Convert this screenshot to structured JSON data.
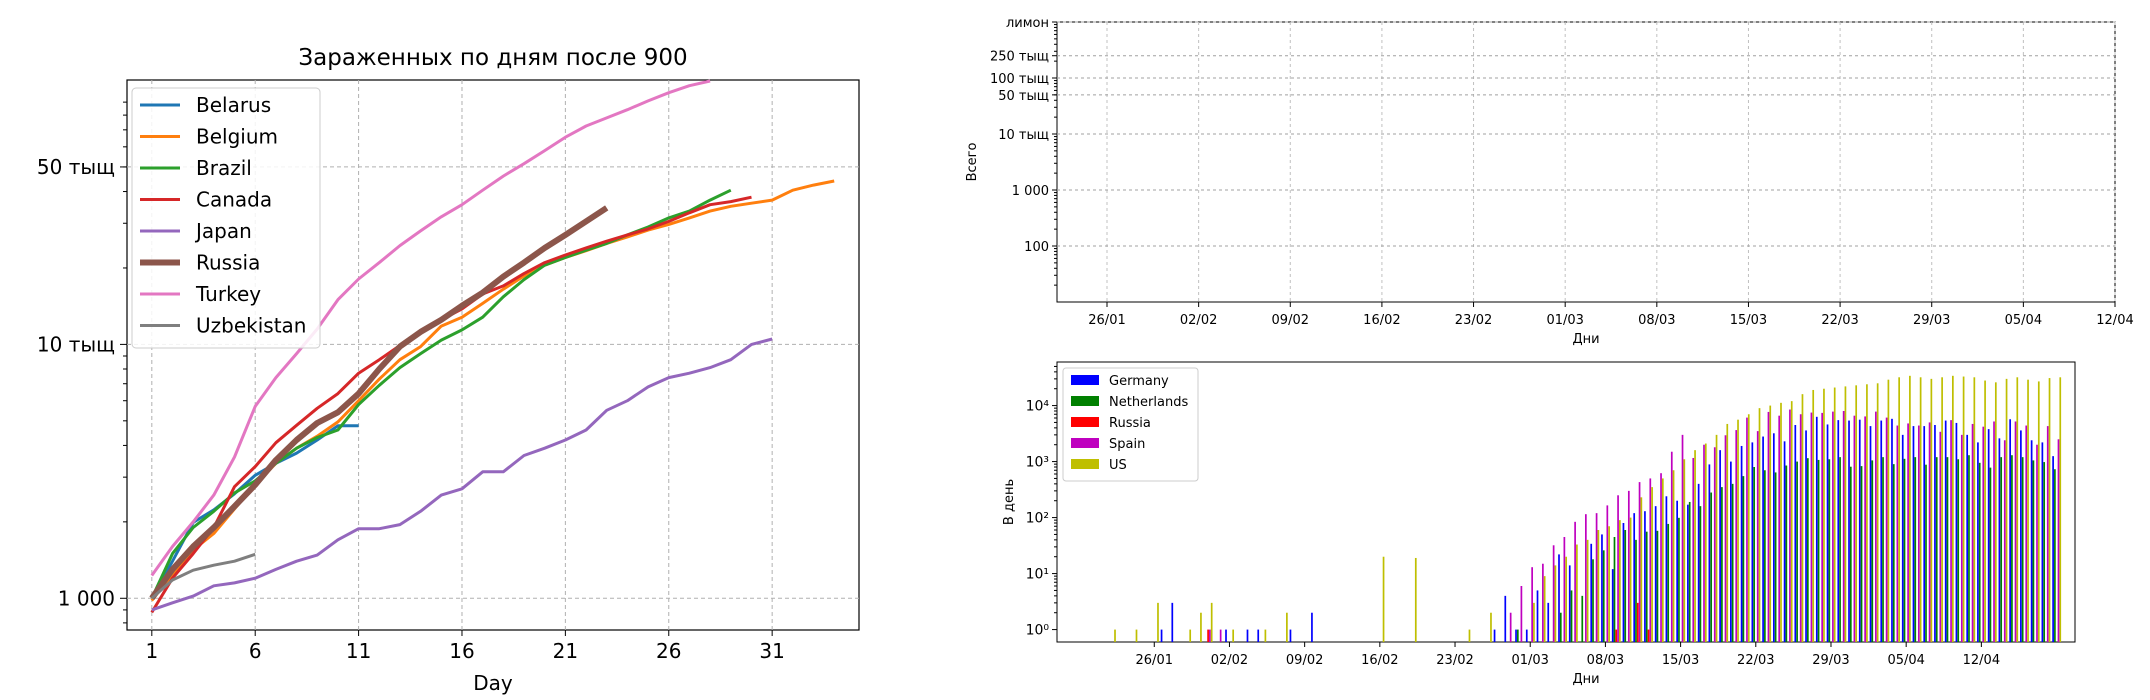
{
  "chart_data": [
    {
      "type": "line",
      "title": "Зараженных по дням после 900",
      "xlabel": "Day",
      "ylabel": "",
      "yscale": "log",
      "xlim": [
        -0.2,
        35.2
      ],
      "ylim": [
        750,
        110000
      ],
      "xticks": [
        1,
        6,
        11,
        16,
        21,
        26,
        31
      ],
      "xtick_labels": [
        "1",
        "6",
        "11",
        "16",
        "21",
        "26",
        "31"
      ],
      "yticks": [
        1000,
        10000,
        50000
      ],
      "ytick_labels": [
        "1 000",
        "10 тыщ",
        "50 тыщ"
      ],
      "grid": true,
      "legend": "upper-left",
      "series": [
        {
          "name": "Belarus",
          "color": "#1f77b4",
          "width": 2.5,
          "x": [
            1,
            2,
            3,
            4,
            5,
            6,
            7,
            8,
            9,
            10,
            11
          ],
          "y": [
            1000,
            1400,
            1990,
            2230,
            2580,
            3050,
            3400,
            3730,
            4200,
            4780,
            4780
          ]
        },
        {
          "name": "Belgium",
          "color": "#ff7f0e",
          "width": 2.5,
          "x": [
            1,
            2,
            3,
            4,
            5,
            6,
            7,
            8,
            9,
            10,
            11,
            12,
            13,
            14,
            15,
            16,
            17,
            18,
            19,
            20,
            21,
            22,
            23,
            24,
            25,
            26,
            27,
            28,
            29,
            30,
            31,
            32,
            33,
            34
          ],
          "y": [
            980,
            1240,
            1550,
            1800,
            2250,
            2800,
            3400,
            3900,
            4350,
            4950,
            6000,
            7300,
            8700,
            9800,
            11800,
            12800,
            14500,
            16500,
            18600,
            20500,
            22000,
            23400,
            25000,
            26500,
            28200,
            29700,
            31500,
            33500,
            35000,
            36000,
            37000,
            40500,
            42400,
            44000
          ]
        },
        {
          "name": "Brazil",
          "color": "#2ca02c",
          "width": 2.5,
          "x": [
            1,
            2,
            3,
            4,
            5,
            6,
            7,
            8,
            9,
            10,
            11,
            12,
            13,
            14,
            15,
            16,
            17,
            18,
            19,
            20,
            21,
            22,
            23,
            24,
            25,
            26,
            27,
            28,
            29
          ],
          "y": [
            1000,
            1500,
            1900,
            2200,
            2600,
            2900,
            3400,
            3900,
            4300,
            4600,
            5800,
            6900,
            8100,
            9200,
            10400,
            11400,
            12800,
            15400,
            18000,
            20500,
            22000,
            23500,
            25000,
            27000,
            29000,
            31500,
            33500,
            37000,
            40500
          ]
        },
        {
          "name": "Canada",
          "color": "#d62728",
          "width": 2.5,
          "x": [
            1,
            2,
            3,
            4,
            5,
            6,
            7,
            8,
            9,
            10,
            11,
            12,
            13,
            14,
            15,
            16,
            17,
            18,
            19,
            20,
            21,
            22,
            23,
            24,
            25,
            26,
            27,
            28,
            29,
            30
          ],
          "y": [
            880,
            1200,
            1500,
            1900,
            2750,
            3300,
            4100,
            4800,
            5600,
            6400,
            7700,
            8700,
            9900,
            11200,
            12500,
            13800,
            15800,
            17000,
            19000,
            21000,
            22500,
            24000,
            25500,
            27000,
            28500,
            30500,
            33000,
            35500,
            36500,
            38000
          ]
        },
        {
          "name": "Japan",
          "color": "#9467bd",
          "width": 2.5,
          "x": [
            1,
            2,
            3,
            4,
            5,
            6,
            7,
            8,
            9,
            10,
            11,
            12,
            13,
            14,
            15,
            16,
            17,
            18,
            19,
            20,
            21,
            22,
            23,
            24,
            25,
            26,
            27,
            28,
            29,
            30,
            31
          ],
          "y": [
            900,
            960,
            1020,
            1120,
            1150,
            1200,
            1300,
            1400,
            1480,
            1700,
            1880,
            1880,
            1950,
            2200,
            2550,
            2700,
            3150,
            3150,
            3650,
            3900,
            4200,
            4600,
            5500,
            6000,
            6800,
            7400,
            7700,
            8100,
            8700,
            10000,
            10500
          ]
        },
        {
          "name": "Russia",
          "color": "#8c564b",
          "width": 5,
          "x": [
            1,
            2,
            3,
            4,
            5,
            6,
            7,
            8,
            9,
            10,
            11,
            12,
            13,
            14,
            15,
            16,
            17,
            18,
            19,
            20,
            21,
            22,
            23
          ],
          "y": [
            1000,
            1300,
            1600,
            1900,
            2300,
            2800,
            3500,
            4200,
            4900,
            5400,
            6400,
            8000,
            9800,
            11200,
            12500,
            14200,
            16000,
            18500,
            21000,
            24000,
            27000,
            30500,
            34500
          ]
        },
        {
          "name": "Turkey",
          "color": "#e377c2",
          "width": 2.5,
          "x": [
            1,
            2,
            3,
            4,
            5,
            6,
            7,
            8,
            9,
            10,
            11,
            12,
            13,
            14,
            15,
            16,
            17,
            18,
            19,
            20,
            21,
            22,
            23,
            24,
            25,
            26,
            27,
            28
          ],
          "y": [
            1230,
            1600,
            2000,
            2550,
            3600,
            5700,
            7400,
            9200,
            11500,
            15000,
            18100,
            21000,
            24500,
            28000,
            31800,
            35500,
            40500,
            46000,
            51500,
            58000,
            65500,
            72500,
            78000,
            84000,
            91000,
            98000,
            104500,
            109000
          ]
        },
        {
          "name": "Uzbekistan",
          "color": "#7f7f7f",
          "width": 2.5,
          "x": [
            1,
            2,
            3,
            4,
            5,
            6
          ],
          "y": [
            1000,
            1180,
            1290,
            1350,
            1400,
            1490
          ]
        }
      ]
    },
    {
      "type": "line",
      "title": "",
      "xlabel": "Дни",
      "ylabel": "Всего",
      "yscale": "log",
      "ylim": [
        10,
        1000000
      ],
      "yticks": [
        100,
        1000,
        10000,
        50000,
        100000,
        250000,
        1000000
      ],
      "ytick_labels": [
        "100",
        "1 000",
        "10 тыщ",
        "50 тыщ",
        "100 тыщ",
        "250 тыщ",
        "лимон"
      ],
      "xtick_labels": [
        "26/01",
        "02/02",
        "09/02",
        "16/02",
        "23/02",
        "01/03",
        "08/03",
        "15/03",
        "22/03",
        "29/03",
        "05/04",
        "12/04"
      ],
      "grid": true,
      "series": []
    },
    {
      "type": "bar",
      "title": "",
      "xlabel": "Дни",
      "ylabel": "В день",
      "yscale": "log",
      "ylim": [
        0.6,
        60000
      ],
      "yticks": [
        1,
        10,
        100,
        1000,
        10000
      ],
      "ytick_labels": [
        "10⁰",
        "10¹",
        "10²",
        "10³",
        "10⁴"
      ],
      "x_start": "22/01",
      "xtick_labels": [
        "26/01",
        "02/02",
        "09/02",
        "16/02",
        "23/02",
        "01/03",
        "08/03",
        "15/03",
        "22/03",
        "29/03",
        "05/04",
        "12/04"
      ],
      "legend": "upper-left",
      "series": [
        {
          "name": "Germany",
          "color": "#0000ff",
          "values": [
            0,
            0,
            0,
            0,
            0,
            1,
            3,
            0,
            0,
            0,
            0,
            1,
            0,
            1,
            1,
            0,
            0,
            1,
            0,
            2,
            0,
            0,
            0,
            0,
            0,
            0,
            0,
            0,
            0,
            0,
            0,
            0,
            0,
            0,
            0,
            0,
            1,
            4,
            1,
            1,
            5,
            3,
            22,
            14,
            0,
            34,
            50,
            12,
            80,
            120,
            130,
            160,
            240,
            200,
            170,
            400,
            890,
            1600,
            1000,
            1900,
            2200,
            2800,
            3200,
            2300,
            4500,
            3600,
            6300,
            4600,
            5500,
            5400,
            5600,
            4300,
            5400,
            5800,
            3000,
            4300,
            4300,
            4500,
            5400,
            4900,
            3000,
            2200,
            3800,
            2600,
            5700,
            3600,
            2400,
            2200,
            1250
          ]
        },
        {
          "name": "Netherlands",
          "color": "#008000",
          "values": [
            0,
            0,
            0,
            0,
            0,
            0,
            0,
            0,
            0,
            0,
            0,
            0,
            0,
            0,
            0,
            0,
            0,
            0,
            0,
            0,
            0,
            0,
            0,
            0,
            0,
            0,
            0,
            0,
            0,
            0,
            0,
            0,
            0,
            0,
            0,
            0,
            0,
            0,
            1,
            0,
            0,
            0,
            2,
            5,
            4,
            18,
            26,
            45,
            60,
            40,
            56,
            58,
            77,
            99,
            190,
            160,
            280,
            350,
            400,
            550,
            800,
            700,
            640,
            850,
            1000,
            1150,
            1070,
            1100,
            1200,
            810,
            830,
            1050,
            1200,
            900,
            1120,
            1200,
            880,
            1200,
            1200,
            1100,
            1300,
            950,
            780,
            1200,
            1300,
            1200,
            1050,
            980,
            730
          ]
        },
        {
          "name": "Russia",
          "color": "#ff0000",
          "values": [
            0,
            0,
            0,
            0,
            0,
            0,
            0,
            0,
            0,
            1,
            0,
            0,
            0,
            0,
            0,
            0,
            0,
            0,
            0,
            0,
            0,
            0,
            0,
            0,
            0,
            0,
            0,
            0,
            0,
            0,
            0,
            0,
            0,
            0,
            0,
            0,
            0,
            0,
            0,
            0,
            0,
            0,
            0,
            0,
            0,
            0,
            0,
            1,
            0,
            3,
            1,
            0,
            0,
            0,
            0,
            0,
            0,
            0,
            0,
            0,
            0,
            0,
            0,
            0,
            0,
            0,
            0,
            0,
            0,
            0,
            0,
            0,
            0,
            0,
            0,
            0,
            0,
            0,
            0,
            0,
            0,
            0,
            0,
            0,
            0,
            0,
            0,
            0,
            0
          ]
        },
        {
          "name": "Spain",
          "color": "#bf00bf",
          "values": [
            0,
            0,
            0,
            0,
            0,
            0,
            0,
            0,
            0,
            1,
            1,
            0,
            0,
            0,
            0,
            0,
            0,
            0,
            0,
            0,
            0,
            0,
            0,
            0,
            0,
            0,
            0,
            0,
            0,
            0,
            0,
            0,
            0,
            0,
            0,
            0,
            0,
            2,
            6,
            13,
            15,
            32,
            45,
            84,
            115,
            120,
            165,
            250,
            300,
            430,
            500,
            620,
            1500,
            3000,
            1160,
            2000,
            1800,
            2950,
            3650,
            6100,
            3500,
            7700,
            6600,
            8500,
            7000,
            7500,
            7400,
            7800,
            8000,
            6600,
            6400,
            7800,
            6100,
            4400,
            4800,
            4400,
            5000,
            3400,
            5500,
            3000,
            4700,
            4200,
            5200,
            2400,
            5200,
            4400,
            2000,
            4300,
            2500
          ]
        },
        {
          "name": "US",
          "color": "#bfbf00",
          "values": [
            1,
            0,
            1,
            0,
            3,
            0,
            0,
            1,
            2,
            3,
            0,
            1,
            0,
            0,
            1,
            0,
            2,
            0,
            0,
            0,
            0,
            0,
            0,
            0,
            0,
            20,
            0,
            0,
            19,
            0,
            0,
            0,
            0,
            1,
            0,
            2,
            0,
            0,
            0,
            3,
            9,
            14,
            20,
            33,
            40,
            60,
            70,
            90,
            100,
            230,
            350,
            500,
            700,
            1100,
            1600,
            2100,
            3000,
            4700,
            5600,
            7000,
            9000,
            10000,
            11200,
            12000,
            16000,
            19000,
            20000,
            21000,
            22000,
            23000,
            24000,
            25000,
            29000,
            32000,
            34000,
            32000,
            30000,
            32000,
            34000,
            33000,
            32000,
            28000,
            26000,
            30000,
            32000,
            29000,
            27000,
            31000,
            32000
          ]
        }
      ]
    }
  ]
}
